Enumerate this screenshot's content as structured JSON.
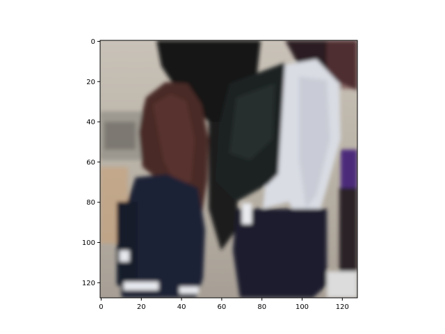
{
  "figure": {
    "kind": "image-with-axes",
    "image_subject": "street photo crop of two people: a person with long brown hair in a dark jacket on the left, and a person carrying a black backpack over a light jacket on the right",
    "colors": {
      "background": "#ffffff",
      "axis": "#000000",
      "photo_ground": "#bdb6ac",
      "hair": "#4a2a25",
      "dark_jacket": "#1f2236",
      "backpack": "#1d2424",
      "light_jacket": "#d8dbe2",
      "skin": "#c89a8a",
      "purple_accent": "#4b2a7a"
    }
  },
  "axes": {
    "x_ticks": [
      {
        "value": 0,
        "label": "0"
      },
      {
        "value": 20,
        "label": "20"
      },
      {
        "value": 40,
        "label": "40"
      },
      {
        "value": 60,
        "label": "60"
      },
      {
        "value": 80,
        "label": "80"
      },
      {
        "value": 100,
        "label": "100"
      },
      {
        "value": 120,
        "label": "120"
      }
    ],
    "y_ticks": [
      {
        "value": 0,
        "label": "0"
      },
      {
        "value": 20,
        "label": "20"
      },
      {
        "value": 40,
        "label": "40"
      },
      {
        "value": 60,
        "label": "60"
      },
      {
        "value": 80,
        "label": "80"
      },
      {
        "value": 100,
        "label": "100"
      },
      {
        "value": 120,
        "label": "120"
      }
    ],
    "x_range": [
      -0.5,
      127.5
    ],
    "y_range": [
      127.5,
      -0.5
    ],
    "y_inverted": true,
    "grid": false
  }
}
